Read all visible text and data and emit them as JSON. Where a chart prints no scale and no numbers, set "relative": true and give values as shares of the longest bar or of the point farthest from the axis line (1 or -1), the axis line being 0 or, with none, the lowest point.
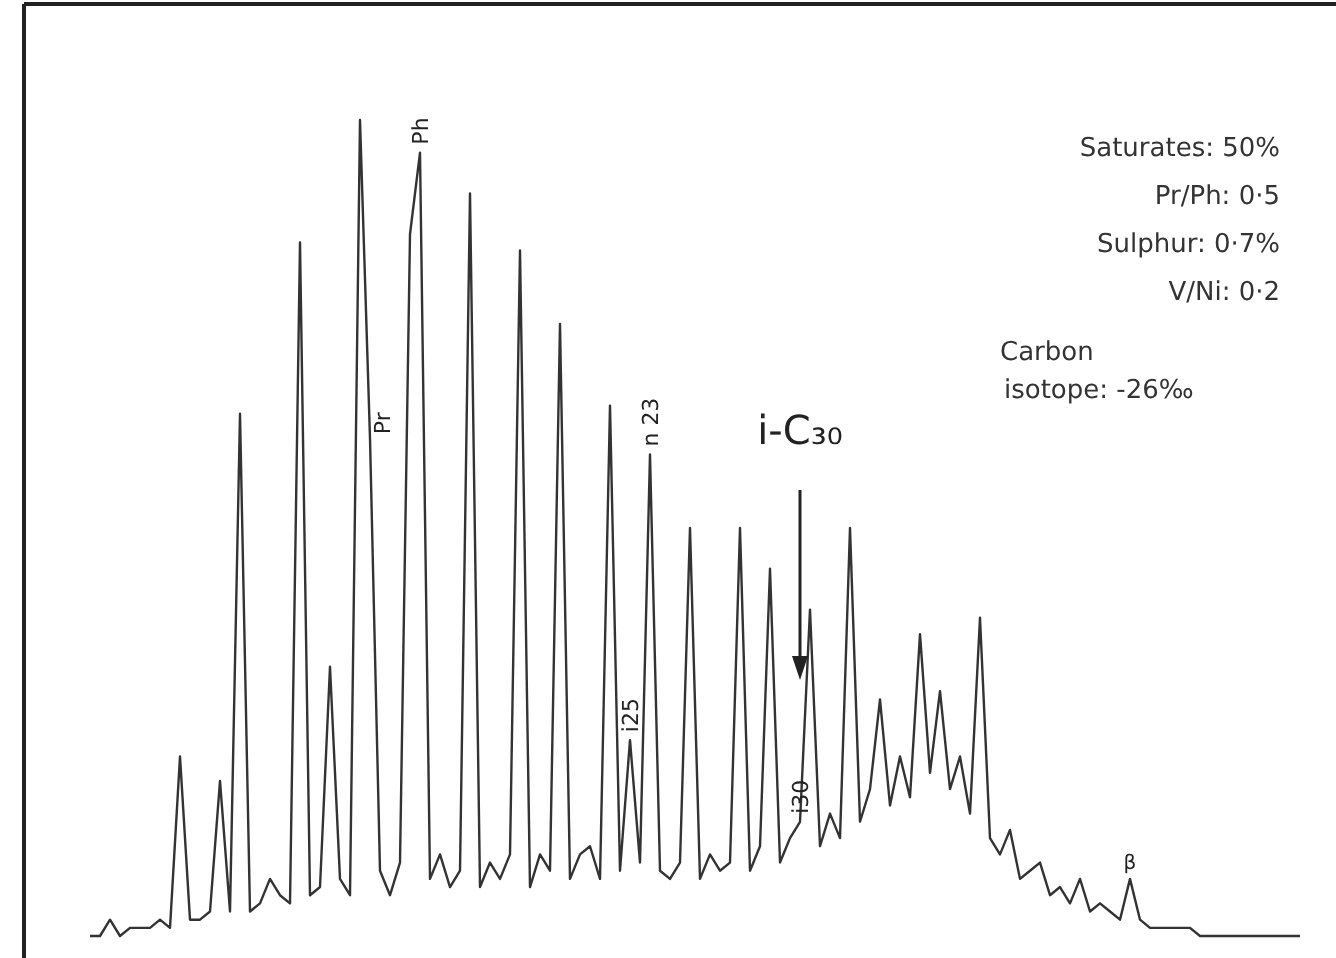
{
  "chart_data": {
    "type": "line",
    "relative": true,
    "categories": [
      null,
      null,
      null,
      null,
      null,
      null,
      null,
      null,
      null,
      null,
      null,
      null,
      null,
      null,
      null,
      null,
      null,
      null,
      null,
      null,
      null,
      null,
      null,
      null,
      null,
      null,
      null,
      null,
      null,
      null,
      null,
      null,
      null,
      null,
      null,
      null,
      null,
      null,
      null,
      null,
      null,
      null,
      null,
      null,
      null,
      null,
      null,
      null,
      null,
      null,
      null,
      null,
      null,
      null,
      null,
      null,
      null,
      null,
      null,
      null,
      null,
      null,
      null,
      null,
      null,
      null,
      null,
      null,
      null,
      null,
      null,
      null,
      null,
      null,
      null,
      null,
      null,
      null,
      null,
      null,
      null,
      null,
      null,
      null,
      null,
      null,
      null,
      null,
      null,
      null,
      null,
      null,
      null,
      null,
      null,
      null,
      null,
      null,
      null,
      null,
      null,
      null,
      null,
      null,
      null,
      null,
      null,
      null,
      null,
      null,
      null,
      null,
      null,
      null,
      null,
      null,
      null,
      null,
      null,
      null,
      null,
      null
    ],
    "series": [
      {
        "color": "#333333",
        "values": [
          0,
          0,
          0.02,
          0,
          0.01,
          0.01,
          0.01,
          0.02,
          0.01,
          0.22,
          0.02,
          0.02,
          0.03,
          0.19,
          0.03,
          0.64,
          0.03,
          0.04,
          0.07,
          0.05,
          0.04,
          0.85,
          0.05,
          0.06,
          0.33,
          0.07,
          0.05,
          1,
          0.61,
          0.08,
          0.05,
          0.09,
          0.86,
          0.96,
          0.07,
          0.1,
          0.06,
          0.08,
          0.91,
          0.06,
          0.09,
          0.07,
          0.1,
          0.84,
          0.06,
          0.1,
          0.08,
          0.75,
          0.07,
          0.1,
          0.11,
          0.07,
          0.65,
          0.08,
          0.24,
          0.09,
          0.59,
          0.08,
          0.07,
          0.09,
          0.5,
          0.07,
          0.1,
          0.08,
          0.09,
          0.5,
          0.08,
          0.11,
          0.45,
          0.09,
          0.12,
          0.14,
          0.4,
          0.11,
          0.15,
          0.12,
          0.5,
          0.14,
          0.18,
          0.29,
          0.16,
          0.22,
          0.17,
          0.37,
          0.2,
          0.3,
          0.18,
          0.22,
          0.15,
          0.39,
          0.12,
          0.1,
          0.13,
          0.07,
          0.08,
          0.09,
          0.05,
          0.06,
          0.04,
          0.07,
          0.03,
          0.04,
          0.03,
          0.02,
          0.07,
          0.02,
          0.01,
          0.01,
          0.01,
          0.01,
          0.01,
          0,
          0,
          0,
          0,
          0,
          0,
          0,
          0,
          0,
          0,
          0
        ]
      }
    ],
    "annotations": [
      "Pr",
      "Ph",
      "i25",
      "n 23",
      "i30",
      "β",
      "i-C₃₀",
      "Saturates: 50%",
      "Pr/Ph: 0·5",
      "Sulphur: 0·7%",
      "V/Ni: 0·2",
      "Carbon isotope: -26‰"
    ],
    "marker": "none",
    "line_style": "solid"
  }
}
